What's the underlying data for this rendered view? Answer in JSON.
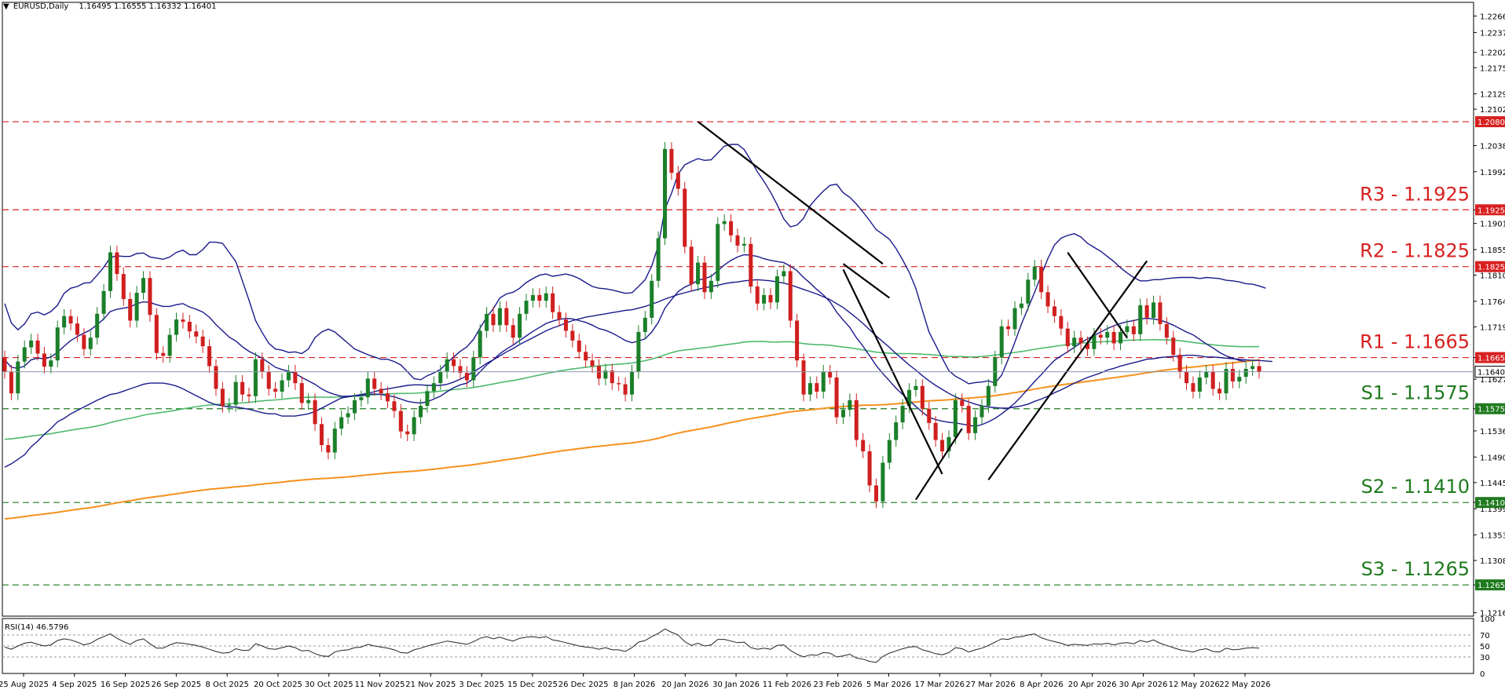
{
  "header": {
    "symbol": "EURUSD,Daily",
    "ohlc": "1.16495 1.16555 1.16332 1.16401"
  },
  "rsi_header": "RSI(14) 46.5796",
  "colors": {
    "bull": "#1b7f2a",
    "bear": "#d01f1f",
    "bollinger": "#1a1a8c",
    "ma_green": "#4fba6f",
    "ma_orange": "#f5911e",
    "resistance": "#d82020",
    "support": "#1f7a1f",
    "price_line": "#8c9aa8",
    "trendline": "#000000"
  },
  "chart_data": [
    {
      "type": "candlestick",
      "title": "EURUSD,Daily",
      "x_tick_labels": [
        "25 Aug 2025",
        "4 Sep 2025",
        "16 Sep 2025",
        "26 Sep 2025",
        "8 Oct 2025",
        "20 Oct 2025",
        "30 Oct 2025",
        "11 Nov 2025",
        "21 Nov 2025",
        "3 Dec 2025",
        "15 Dec 2025",
        "26 Dec 2025",
        "8 Jan 2026",
        "20 Jan 2026",
        "30 Jan 2026",
        "11 Feb 2026",
        "23 Feb 2026",
        "5 Mar 2026",
        "17 Mar 2026",
        "27 Mar 2026",
        "8 Apr 2026",
        "20 Apr 2026",
        "30 Apr 2026",
        "12 May 2026",
        "22 May 2026"
      ],
      "y_tick_labels": [
        "1.22660",
        "1.22370",
        "1.22020",
        "1.21750",
        "1.21290",
        "1.21020",
        "1.20380",
        "1.19920",
        "1.19250",
        "1.19010",
        "1.18550",
        "1.18100",
        "1.17640",
        "1.17190",
        "1.16650",
        "1.16270",
        "1.15750",
        "1.15360",
        "1.14900",
        "1.14450",
        "1.14100",
        "1.13990",
        "1.13530",
        "1.13080",
        "1.12650",
        "1.12160"
      ],
      "ylim": [
        1.121,
        1.229
      ],
      "current_price": "1.16401",
      "levels": [
        {
          "label": "R3 - 1.1925",
          "tag": "1.19250",
          "value": 1.1925,
          "kind": "resistance"
        },
        {
          "label": "R2 - 1.1825",
          "tag": "1.18250",
          "value": 1.1825,
          "kind": "resistance"
        },
        {
          "label": "R1 - 1.1665",
          "tag": "1.16650",
          "value": 1.1665,
          "kind": "resistance"
        },
        {
          "label": "S1 - 1.1575",
          "tag": "1.15750",
          "value": 1.1575,
          "kind": "support"
        },
        {
          "label": "S2 - 1.1410",
          "tag": "1.14100",
          "value": 1.141,
          "kind": "support"
        },
        {
          "label": "S3 - 1.1265",
          "tag": "1.12650",
          "value": 1.1265,
          "kind": "support"
        }
      ],
      "extra_level": {
        "tag": "1.20800",
        "value": 1.208
      },
      "close": [
        1.164,
        1.1602,
        1.1658,
        1.1683,
        1.1695,
        1.1672,
        1.1649,
        1.166,
        1.1718,
        1.1738,
        1.1725,
        1.1705,
        1.168,
        1.17,
        1.1742,
        1.1782,
        1.185,
        1.1812,
        1.1768,
        1.173,
        1.1779,
        1.1805,
        1.174,
        1.1673,
        1.1668,
        1.1705,
        1.1732,
        1.1728,
        1.1711,
        1.1702,
        1.1685,
        1.165,
        1.161,
        1.158,
        1.1582,
        1.1622,
        1.16,
        1.1597,
        1.1662,
        1.164,
        1.161,
        1.1605,
        1.1625,
        1.164,
        1.162,
        1.1585,
        1.159,
        1.1548,
        1.1511,
        1.1498,
        1.154,
        1.156,
        1.1567,
        1.159,
        1.1595,
        1.1628,
        1.161,
        1.1602,
        1.1588,
        1.1571,
        1.1535,
        1.153,
        1.156,
        1.158,
        1.1606,
        1.162,
        1.164,
        1.1662,
        1.165,
        1.1638,
        1.1625,
        1.1665,
        1.1712,
        1.1742,
        1.1722,
        1.1752,
        1.1722,
        1.17,
        1.1742,
        1.1765,
        1.1775,
        1.1765,
        1.1778,
        1.1745,
        1.1732,
        1.1712,
        1.1695,
        1.1675,
        1.166,
        1.165,
        1.1628,
        1.1642,
        1.162,
        1.1618,
        1.16,
        1.164,
        1.171,
        1.1735,
        1.18,
        1.1875,
        1.2032,
        1.199,
        1.1962,
        1.186,
        1.1794,
        1.1832,
        1.178,
        1.18,
        1.19,
        1.1905,
        1.188,
        1.1862,
        1.1865,
        1.179,
        1.176,
        1.1775,
        1.1762,
        1.1808,
        1.1817,
        1.173,
        1.166,
        1.16,
        1.162,
        1.1605,
        1.164,
        1.163,
        1.156,
        1.1573,
        1.159,
        1.152,
        1.15,
        1.144,
        1.1412,
        1.148,
        1.152,
        1.1551,
        1.158,
        1.1608,
        1.1615,
        1.1575,
        1.155,
        1.152,
        1.15,
        1.1525,
        1.159,
        1.158,
        1.1532,
        1.156,
        1.158,
        1.1615,
        1.1665,
        1.172,
        1.1715,
        1.1752,
        1.176,
        1.1802,
        1.1825,
        1.178,
        1.1755,
        1.1738,
        1.1716,
        1.1685,
        1.17,
        1.169,
        1.168,
        1.1705,
        1.17,
        1.171,
        1.169,
        1.171,
        1.172,
        1.1706,
        1.1757,
        1.1735,
        1.1762,
        1.1724,
        1.17,
        1.167,
        1.164,
        1.162,
        1.1605,
        1.163,
        1.164,
        1.161,
        1.1602,
        1.1645,
        1.1623,
        1.1631,
        1.1645,
        1.165,
        1.164
      ],
      "bollinger_upper": [
        1.176,
        1.1726,
        1.1714,
        1.1724,
        1.1742,
        1.1745,
        1.174,
        1.1746,
        1.1757,
        1.1778,
        1.1787,
        1.179,
        1.1796,
        1.1797,
        1.181,
        1.1824,
        1.1841,
        1.1844,
        1.1843,
        1.1843,
        1.1848,
        1.1849,
        1.1842,
        1.184,
        1.1838,
        1.1842,
        1.185,
        1.1854,
        1.1846,
        1.1846,
        1.1855,
        1.1868,
        1.1868,
        1.1866,
        1.185,
        1.1834,
        1.18,
        1.1766,
        1.173,
        1.1709,
        1.169,
        1.168,
        1.1678,
        1.1674,
        1.1675,
        1.1672,
        1.168,
        1.17,
        1.171,
        1.1715,
        1.171,
        1.17,
        1.169,
        1.168,
        1.1675,
        1.167,
        1.1666,
        1.1662,
        1.1662,
        1.1658,
        1.1652,
        1.164,
        1.1628,
        1.1626,
        1.1633,
        1.1638,
        1.1644,
        1.1656,
        1.1666,
        1.1676,
        1.1684,
        1.1697,
        1.1717,
        1.1736,
        1.1751,
        1.177,
        1.1777,
        1.178,
        1.1787,
        1.1797,
        1.1804,
        1.181,
        1.1812,
        1.1808,
        1.181,
        1.1812,
        1.1809,
        1.1804,
        1.1797,
        1.179,
        1.1787,
        1.1786,
        1.1784,
        1.1781,
        1.1778,
        1.1779,
        1.179,
        1.1802,
        1.1826,
        1.1862,
        1.1926,
        1.1954,
        1.1988,
        1.2004,
        1.201,
        1.2015,
        1.2012,
        1.2013,
        1.2025,
        1.2037,
        1.204,
        1.204,
        1.2031,
        1.2012,
        1.1992,
        1.1975,
        1.1956,
        1.1934,
        1.1909,
        1.1895,
        1.1898,
        1.191,
        1.1932,
        1.1946,
        1.1958,
        1.1968,
        1.197,
        1.1955,
        1.1947,
        1.1935,
        1.1921,
        1.1906,
        1.189,
        1.1882,
        1.1873,
        1.1857,
        1.1837,
        1.1815,
        1.1787,
        1.1748,
        1.171,
        1.1687,
        1.1664,
        1.1642,
        1.1632,
        1.1626,
        1.1619,
        1.1621,
        1.1622,
        1.1624,
        1.162,
        1.1634,
        1.1662,
        1.1692,
        1.1724,
        1.1752,
        1.178,
        1.181,
        1.1839,
        1.1863,
        1.1875,
        1.188,
        1.1883,
        1.1877,
        1.1866,
        1.1859,
        1.1852,
        1.1843,
        1.1834,
        1.1823,
        1.1814,
        1.1806,
        1.18,
        1.18,
        1.1802,
        1.1802,
        1.1804,
        1.1805,
        1.1806,
        1.1806,
        1.1806,
        1.1804,
        1.1806,
        1.1805,
        1.1804,
        1.1801,
        1.18,
        1.1798,
        1.1795,
        1.1794,
        1.1791,
        1.1787
      ],
      "bollinger_middle": [
        1.1661,
        1.1648,
        1.1646,
        1.165,
        1.1661,
        1.1664,
        1.1663,
        1.1666,
        1.1674,
        1.1685,
        1.1695,
        1.1702,
        1.1708,
        1.1714,
        1.1723,
        1.1733,
        1.1746,
        1.175,
        1.1752,
        1.1754,
        1.176,
        1.1763,
        1.1762,
        1.1758,
        1.1755,
        1.1755,
        1.1758,
        1.176,
        1.1754,
        1.175,
        1.1745,
        1.1736,
        1.1723,
        1.1712,
        1.1701,
        1.1694,
        1.1684,
        1.1676,
        1.167,
        1.1664,
        1.1656,
        1.1648,
        1.1644,
        1.1641,
        1.1637,
        1.163,
        1.1624,
        1.1618,
        1.161,
        1.1604,
        1.16,
        1.1597,
        1.1597,
        1.1598,
        1.1598,
        1.16,
        1.1601,
        1.16,
        1.1598,
        1.1596,
        1.1592,
        1.1588,
        1.1586,
        1.1585,
        1.1587,
        1.1592,
        1.1597,
        1.1605,
        1.1612,
        1.1617,
        1.162,
        1.1628,
        1.164,
        1.1652,
        1.1661,
        1.1672,
        1.168,
        1.1687,
        1.1695,
        1.1703,
        1.1711,
        1.1718,
        1.1725,
        1.1729,
        1.1732,
        1.1734,
        1.1733,
        1.173,
        1.1727,
        1.1722,
        1.1716,
        1.1713,
        1.1708,
        1.1702,
        1.1695,
        1.1691,
        1.1694,
        1.1698,
        1.171,
        1.1727,
        1.1752,
        1.1767,
        1.1781,
        1.1789,
        1.1794,
        1.1801,
        1.1804,
        1.1808,
        1.1818,
        1.1828,
        1.1836,
        1.1842,
        1.1846,
        1.1845,
        1.1843,
        1.1839,
        1.1836,
        1.1834,
        1.1832,
        1.1826,
        1.1818,
        1.1806,
        1.1796,
        1.1785,
        1.1775,
        1.1763,
        1.1745,
        1.1731,
        1.1718,
        1.17,
        1.1685,
        1.1668,
        1.1651,
        1.1637,
        1.1624,
        1.1611,
        1.16,
        1.159,
        1.1579,
        1.1569,
        1.156,
        1.1556,
        1.1553,
        1.1551,
        1.155,
        1.1548,
        1.1546,
        1.1544,
        1.1547,
        1.1552,
        1.1558,
        1.1566,
        1.1575,
        1.1585,
        1.1597,
        1.161,
        1.1623,
        1.1635,
        1.1648,
        1.166,
        1.1668,
        1.1675,
        1.1683,
        1.1691,
        1.1698,
        1.1704,
        1.171,
        1.1716,
        1.1721,
        1.1725,
        1.1728,
        1.173,
        1.1733,
        1.1734,
        1.1733,
        1.1731,
        1.1727,
        1.1722,
        1.1716,
        1.171,
        1.1705,
        1.1697,
        1.1689,
        1.1682,
        1.1674,
        1.1668,
        1.1664,
        1.166,
        1.1658
      ],
      "bollinger_lower": [
        1.1472,
        1.1478,
        1.1486,
        1.1494,
        1.1508,
        1.1518,
        1.153,
        1.154,
        1.1552,
        1.1558,
        1.1566,
        1.1572,
        1.1578,
        1.1584,
        1.159,
        1.1595,
        1.16,
        1.1602,
        1.1606,
        1.161,
        1.1614,
        1.1618,
        1.162,
        1.162,
        1.162,
        1.1618,
        1.1615,
        1.161,
        1.1604,
        1.1598,
        1.1592,
        1.1586,
        1.1582,
        1.158,
        1.1578,
        1.1578,
        1.1576,
        1.1574,
        1.1571,
        1.1568,
        1.1566,
        1.1566,
        1.1562,
        1.1562,
        1.1562,
        1.1564,
        1.1566,
        1.157,
        1.1576,
        1.1582,
        1.1588,
        1.1594,
        1.1596,
        1.1598,
        1.16,
        1.1602,
        1.1605,
        1.1608,
        1.161,
        1.1612,
        1.1614,
        1.1616,
        1.1617,
        1.1617,
        1.1616,
        1.1616,
        1.1616,
        1.1618,
        1.1622,
        1.1627,
        1.1633,
        1.164,
        1.1647,
        1.1655,
        1.1661,
        1.1668,
        1.1675,
        1.1681,
        1.1688,
        1.1694,
        1.17,
        1.1706,
        1.1712,
        1.1717,
        1.1721,
        1.1726,
        1.173,
        1.1733,
        1.1736,
        1.1738,
        1.174,
        1.1742,
        1.1744,
        1.1746,
        1.1748,
        1.1749,
        1.1752,
        1.1755,
        1.1759,
        1.1763,
        1.1768,
        1.1772,
        1.1776,
        1.1779,
        1.1782,
        1.1785,
        1.1788,
        1.179,
        1.1792,
        1.1795,
        1.1797,
        1.1798,
        1.18,
        1.1801,
        1.1802,
        1.1801,
        1.18,
        1.1798,
        1.1796,
        1.1793,
        1.1789,
        1.1785,
        1.1781,
        1.1777,
        1.1772,
        1.1767,
        1.176,
        1.1753,
        1.1744,
        1.1735,
        1.1725,
        1.1714,
        1.1703,
        1.1693,
        1.1683,
        1.1672,
        1.1662,
        1.1652,
        1.1643,
        1.1633,
        1.1624,
        1.1616,
        1.1609,
        1.1602,
        1.1596,
        1.1591,
        1.1587,
        1.1583,
        1.158,
        1.1578,
        1.1577,
        1.1576,
        1.1576,
        1.1578,
        1.158,
        1.1583,
        1.1588,
        1.1592,
        1.1597,
        1.1603,
        1.1608,
        1.1614,
        1.162,
        1.1625,
        1.163,
        1.1634,
        1.1638,
        1.1643,
        1.1646,
        1.165,
        1.1653,
        1.1656,
        1.1659,
        1.1662,
        1.1663,
        1.1665,
        1.1666,
        1.1667,
        1.1668,
        1.1669,
        1.1669,
        1.1668,
        1.1666,
        1.1666,
        1.1665,
        1.1664,
        1.1663,
        1.1662,
        1.1661,
        1.166,
        1.166,
        1.1659,
        1.1658
      ]
    },
    {
      "type": "line",
      "title": "RSI(14) 46.5796",
      "ylim": [
        0,
        100
      ],
      "y_tick_labels": [
        "100",
        "70",
        "50",
        "30",
        "0"
      ],
      "series": [
        {
          "values": [
            48,
            44,
            50,
            55,
            57,
            53,
            50,
            52,
            60,
            63,
            61,
            57,
            52,
            55,
            62,
            67,
            72,
            64,
            58,
            53,
            60,
            63,
            54,
            46,
            46,
            52,
            56,
            55,
            53,
            51,
            48,
            44,
            40,
            37,
            38,
            45,
            42,
            42,
            54,
            50,
            45,
            44,
            47,
            50,
            47,
            41,
            42,
            36,
            32,
            31,
            39,
            42,
            43,
            47,
            48,
            53,
            50,
            48,
            46,
            43,
            38,
            37,
            43,
            46,
            50,
            53,
            56,
            59,
            57,
            55,
            53,
            58,
            64,
            67,
            63,
            66,
            62,
            59,
            64,
            66,
            67,
            65,
            67,
            61,
            59,
            56,
            53,
            50,
            48,
            47,
            44,
            47,
            43,
            43,
            40,
            47,
            57,
            60,
            67,
            73,
            81,
            75,
            70,
            58,
            51,
            55,
            50,
            52,
            62,
            62,
            59,
            56,
            57,
            47,
            44,
            46,
            44,
            51,
            52,
            42,
            35,
            30,
            34,
            33,
            38,
            37,
            30,
            32,
            35,
            28,
            26,
            22,
            20,
            31,
            37,
            41,
            45,
            48,
            49,
            43,
            40,
            36,
            34,
            38,
            47,
            45,
            39,
            43,
            46,
            51,
            57,
            63,
            62,
            66,
            67,
            70,
            72,
            65,
            61,
            58,
            55,
            51,
            53,
            52,
            51,
            54,
            53,
            55,
            52,
            55,
            56,
            54,
            60,
            57,
            61,
            55,
            51,
            47,
            43,
            41,
            39,
            43,
            45,
            40,
            39,
            46,
            43,
            44,
            46,
            47,
            46
          ]
        }
      ]
    }
  ]
}
